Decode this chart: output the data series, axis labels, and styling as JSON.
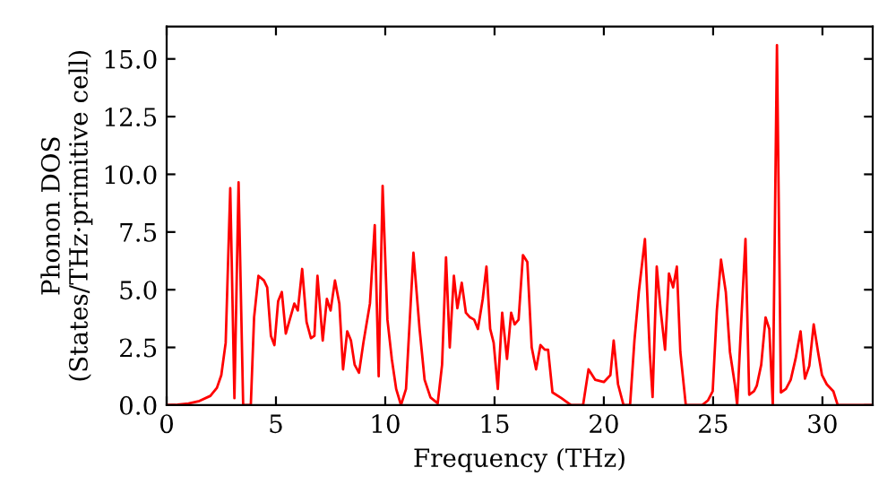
{
  "chart_data": {
    "type": "line",
    "xlabel": "Frequency (THz)",
    "ylabel": "Phonon DOS\n(States/THz·primitive cell)",
    "xlim": [
      0,
      32.3
    ],
    "ylim": [
      0,
      16.4
    ],
    "xticks": [
      0,
      5,
      10,
      15,
      20,
      25,
      30
    ],
    "yticks": [
      {
        "value": 0,
        "label": "0.0"
      },
      2.5,
      {
        "value": 5,
        "label": "5.0"
      },
      7.5,
      {
        "value": 10,
        "label": "10.0"
      },
      12.5,
      {
        "value": 15,
        "label": "15.0"
      }
    ],
    "grid": false,
    "legend": false,
    "marker": "none",
    "line_style": "solid",
    "series": [
      {
        "color": "#ff0000",
        "x": [
          0,
          0.5,
          1,
          1.5,
          2,
          2.3,
          2.5,
          2.7,
          2.91,
          3.1,
          3.29,
          3.5,
          3.85,
          4.0,
          4.2,
          4.45,
          4.6,
          4.77,
          4.93,
          5.1,
          5.27,
          5.45,
          5.84,
          6.0,
          6.2,
          6.4,
          6.6,
          6.76,
          6.9,
          7.14,
          7.33,
          7.5,
          7.7,
          7.9,
          8.07,
          8.26,
          8.43,
          8.6,
          8.8,
          9.0,
          9.3,
          9.52,
          9.7,
          9.88,
          10.1,
          10.3,
          10.5,
          10.72,
          10.95,
          11.29,
          11.57,
          11.8,
          12.07,
          12.4,
          12.6,
          12.78,
          12.95,
          13.14,
          13.3,
          13.5,
          13.69,
          13.88,
          14.07,
          14.24,
          14.46,
          14.63,
          14.8,
          14.96,
          15.15,
          15.35,
          15.57,
          15.76,
          15.92,
          16.1,
          16.3,
          16.5,
          16.7,
          16.9,
          17.1,
          17.3,
          17.45,
          17.65,
          18.06,
          18.5,
          19.05,
          19.3,
          19.6,
          20.0,
          20.3,
          20.45,
          20.65,
          20.9,
          21.2,
          21.4,
          21.6,
          21.88,
          22.1,
          22.23,
          22.42,
          22.6,
          22.8,
          22.98,
          23.17,
          23.34,
          23.5,
          23.75,
          24.5,
          24.76,
          24.98,
          25.17,
          25.36,
          25.58,
          25.77,
          26.0,
          26.1,
          26.3,
          26.48,
          26.65,
          26.87,
          27.0,
          27.2,
          27.4,
          27.57,
          27.73,
          27.92,
          28.1,
          28.33,
          28.55,
          28.77,
          29.0,
          29.2,
          29.4,
          29.6,
          29.8,
          29.98,
          30.2,
          30.5,
          30.7,
          32.25
        ],
        "values": [
          0,
          0.02,
          0.07,
          0.18,
          0.4,
          0.75,
          1.3,
          2.7,
          9.4,
          0.3,
          9.65,
          0,
          0,
          3.8,
          5.6,
          5.4,
          5.1,
          3.0,
          2.6,
          4.5,
          4.9,
          3.1,
          4.4,
          4.1,
          5.9,
          3.6,
          2.9,
          3.0,
          5.6,
          2.8,
          4.6,
          4.1,
          5.4,
          4.4,
          1.55,
          3.2,
          2.8,
          1.75,
          1.4,
          2.7,
          4.4,
          7.8,
          1.25,
          9.5,
          3.7,
          2.0,
          0.7,
          0,
          0.7,
          6.6,
          3.3,
          1.1,
          0.33,
          0.08,
          1.75,
          6.4,
          2.5,
          5.6,
          4.2,
          5.3,
          4.0,
          3.8,
          3.7,
          3.3,
          4.6,
          6.0,
          3.3,
          2.7,
          0.7,
          4.0,
          2.0,
          4.0,
          3.5,
          3.7,
          6.5,
          6.2,
          2.5,
          1.55,
          2.6,
          2.4,
          2.4,
          0.55,
          0.3,
          0,
          0,
          1.55,
          1.1,
          1.0,
          1.3,
          2.8,
          0.9,
          0,
          0,
          2.8,
          4.9,
          7.2,
          2.3,
          0.35,
          6.0,
          4.1,
          2.4,
          5.7,
          5.1,
          6.0,
          2.3,
          0,
          0,
          0.2,
          0.6,
          4.1,
          6.3,
          4.9,
          2.3,
          0.85,
          0,
          3.9,
          7.2,
          0.45,
          0.6,
          0.85,
          1.75,
          3.8,
          3.3,
          0,
          15.6,
          0.55,
          0.7,
          1.1,
          2.0,
          3.2,
          1.15,
          1.7,
          3.5,
          2.3,
          1.3,
          0.9,
          0.6,
          0,
          0
        ]
      }
    ]
  }
}
